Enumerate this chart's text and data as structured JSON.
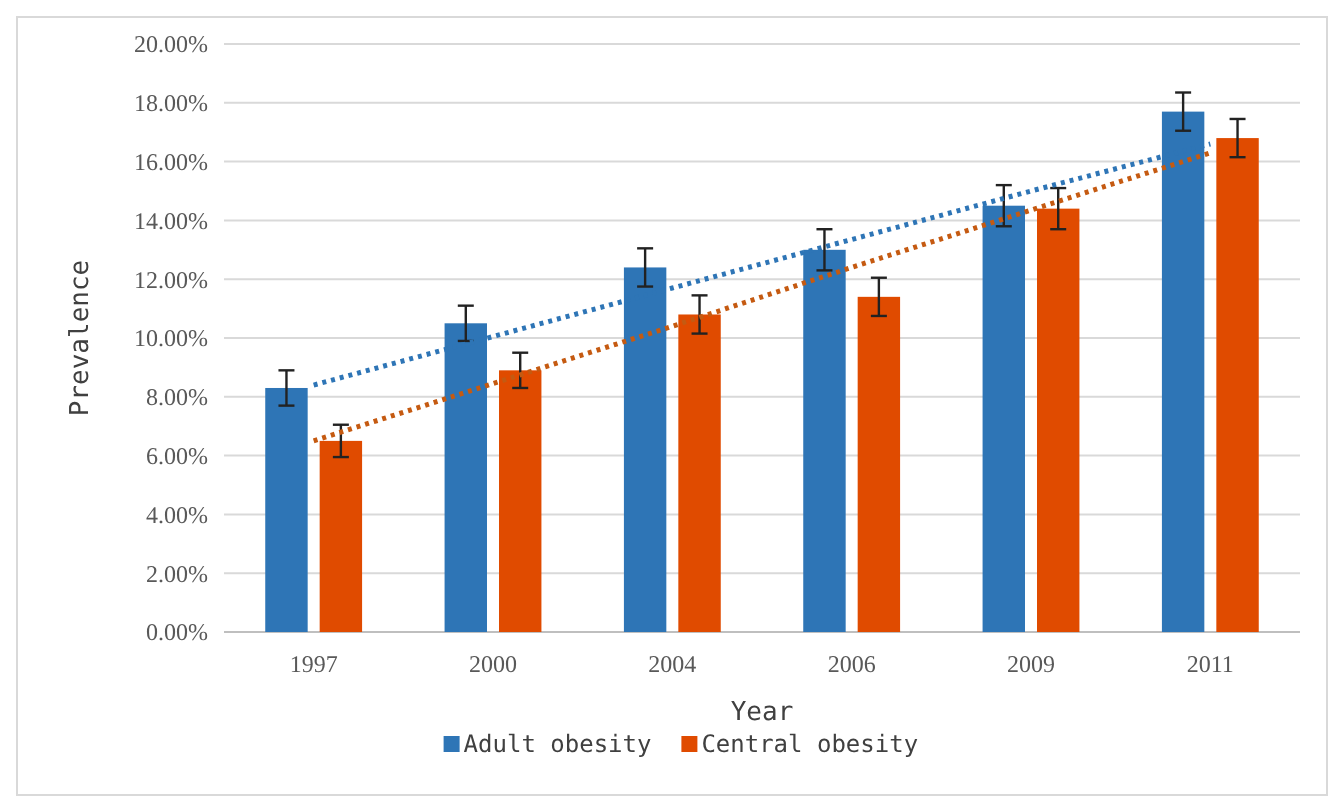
{
  "chart_data": {
    "type": "bar",
    "xlabel": "Year",
    "ylabel": "Prevalence",
    "categories": [
      "1997",
      "2000",
      "2004",
      "2006",
      "2009",
      "2011"
    ],
    "series": [
      {
        "name": "Adult obesity",
        "color": "#2e75b6",
        "values": [
          8.3,
          10.5,
          12.4,
          13.0,
          14.5,
          17.7
        ],
        "errors": [
          0.6,
          0.6,
          0.65,
          0.7,
          0.7,
          0.65
        ]
      },
      {
        "name": "Central obesity",
        "color": "#e04b00",
        "values": [
          6.5,
          8.9,
          10.8,
          11.4,
          14.4,
          16.8
        ],
        "errors": [
          0.55,
          0.6,
          0.65,
          0.65,
          0.7,
          0.65
        ]
      },
      {
        "type": "line",
        "color": "#2e75b6",
        "values": [
          8.4,
          10.05,
          11.7,
          13.35,
          15.0,
          16.6
        ],
        "line_style": "dotted"
      },
      {
        "type": "line",
        "color": "#c55a11",
        "values": [
          6.5,
          8.45,
          10.4,
          12.4,
          14.35,
          16.3
        ],
        "line_style": "dotted"
      }
    ],
    "ylim": [
      0,
      20
    ],
    "yticks": [
      {
        "value": 0,
        "label": "0.00%"
      },
      {
        "value": 2,
        "label": "2.00%"
      },
      {
        "value": 4,
        "label": "4.00%"
      },
      {
        "value": 6,
        "label": "6.00%"
      },
      {
        "value": 8,
        "label": "8.00%"
      },
      {
        "value": 10,
        "label": "10.00%"
      },
      {
        "value": 12,
        "label": "12.00%"
      },
      {
        "value": 14,
        "label": "14.00%"
      },
      {
        "value": 16,
        "label": "16.00%"
      },
      {
        "value": 18,
        "label": "18.00%"
      },
      {
        "value": 20,
        "label": "20.00%"
      }
    ],
    "grid": "y",
    "legend": "bottom"
  }
}
